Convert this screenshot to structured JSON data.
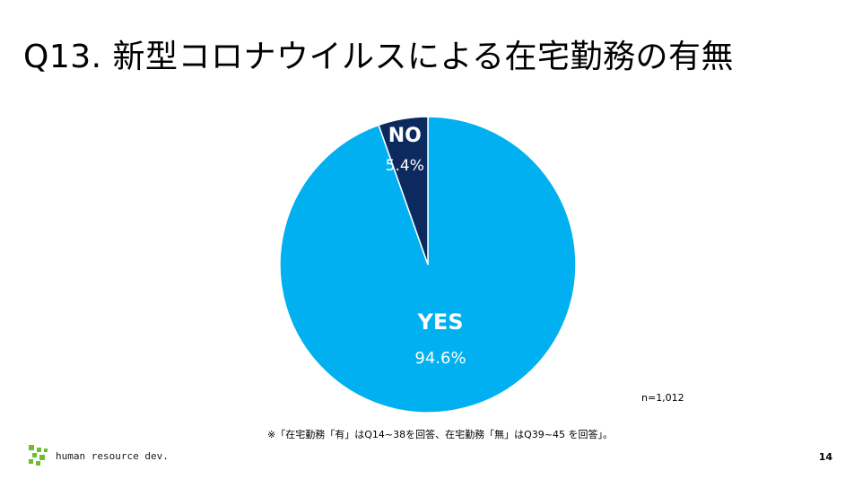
{
  "title": "Q13. 新型コロナウイルスによる在宅勤務の有無",
  "chart_data": {
    "type": "pie",
    "categories": [
      "YES",
      "NO"
    ],
    "values": [
      94.6,
      5.4
    ],
    "value_labels": [
      "94.6%",
      "5.4%"
    ],
    "colors": [
      "#00B0F0",
      "#0D2A5E"
    ],
    "start": "12 o'clock, clockwise"
  },
  "sample_size": "n=1,012",
  "footnote": "※「在宅勤務「有」はQ14~38を回答、在宅勤務「無」はQ39~45 を回答」。",
  "brand": {
    "text": "human resource dev.",
    "accent": "#6DBE2E"
  },
  "page_number": "14"
}
